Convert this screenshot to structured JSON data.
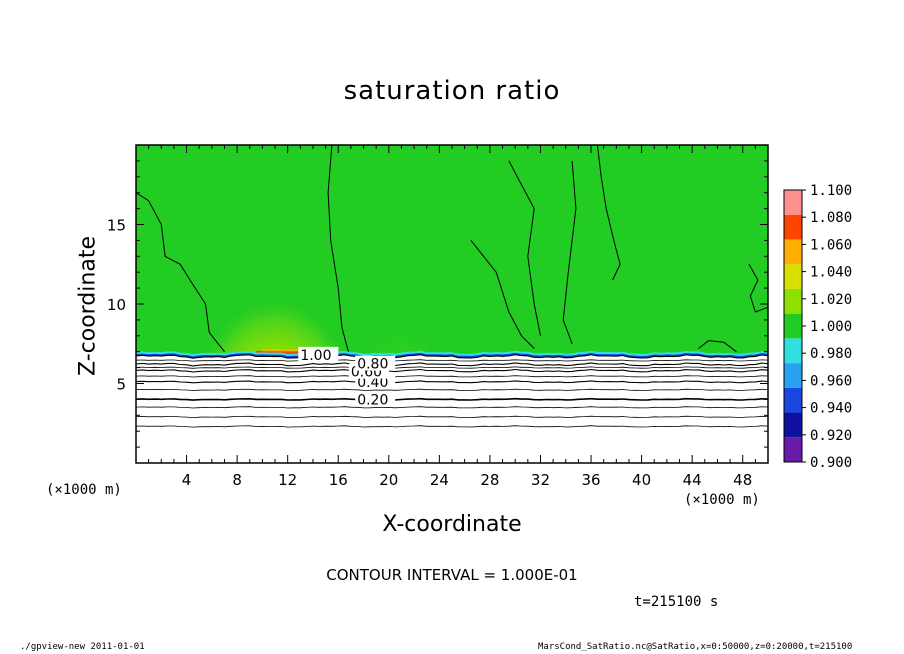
{
  "chart_data": {
    "type": "heatmap",
    "title": "saturation ratio",
    "xlabel": "X-coordinate",
    "ylabel": "Z-coordinate",
    "x_unit_label": "(×1000 m)",
    "y_unit_label": "(×1000 m)",
    "xlim": [
      0,
      50
    ],
    "ylim": [
      0,
      20
    ],
    "x_ticks": [
      4,
      8,
      12,
      16,
      20,
      24,
      28,
      32,
      36,
      40,
      44,
      48
    ],
    "y_ticks": [
      5,
      10,
      15
    ],
    "colorbar": {
      "levels": [
        0.9,
        0.92,
        0.94,
        0.96,
        0.98,
        1.0,
        1.02,
        1.04,
        1.06,
        1.08,
        1.1
      ],
      "labels": [
        "0.900",
        "0.920",
        "0.940",
        "0.960",
        "0.980",
        "1.000",
        "1.020",
        "1.040",
        "1.060",
        "1.080",
        "1.100"
      ],
      "colors": [
        "#6a1aa8",
        "#1010a0",
        "#1848e0",
        "#2aa0f0",
        "#30e0e0",
        "#22cc22",
        "#8ee000",
        "#d8e000",
        "#ffb000",
        "#ff4400",
        "#ff9090"
      ]
    },
    "contour_lines": [
      {
        "label": "0.20",
        "z": 4.0
      },
      {
        "label": "0.40",
        "z": 5.1
      },
      {
        "label": "0.60",
        "z": 5.8
      },
      {
        "label": "0.80",
        "z": 6.2
      },
      {
        "label": "1.00",
        "z": 6.7
      }
    ],
    "saturated_layer_bottom_z": 6.8,
    "annotations": [
      "0.20",
      "0.40",
      "0.60",
      "0.80",
      "1.00"
    ],
    "contour_interval": "CONTOUR INTERVAL = 1.000E-01",
    "time": "t=215100 s",
    "footer_left": "./gpview-new  2011-01-01",
    "footer_right": "MarsCond_SatRatio.nc@SatRatio,x=0:50000,z=0:20000,t=215100"
  }
}
